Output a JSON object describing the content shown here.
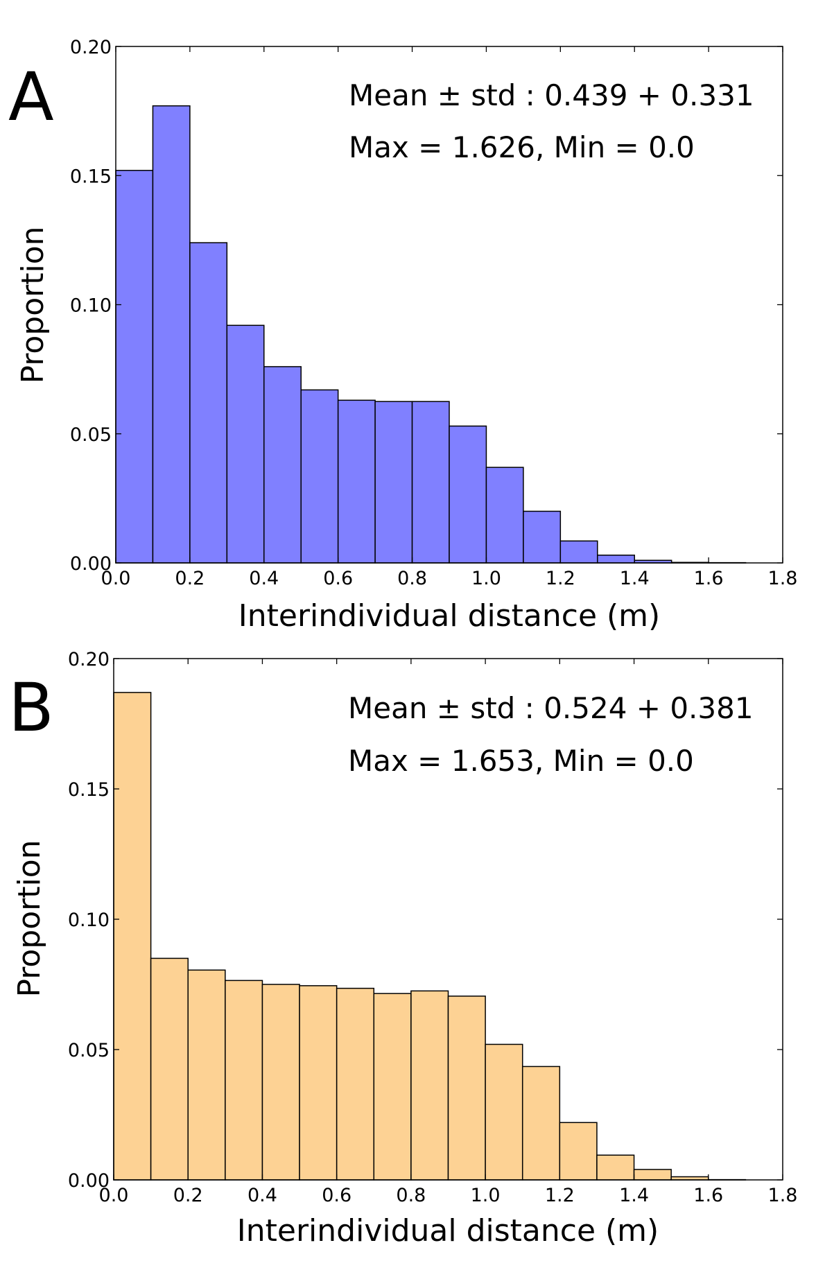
{
  "chart_data": [
    {
      "type": "bar",
      "panel_label": "A",
      "color": "#8080ff",
      "bin_edges": [
        0.0,
        0.1,
        0.2,
        0.3,
        0.4,
        0.5,
        0.6,
        0.7,
        0.8,
        0.9,
        1.0,
        1.1,
        1.2,
        1.3,
        1.4,
        1.5,
        1.6,
        1.7
      ],
      "values": [
        0.152,
        0.177,
        0.124,
        0.092,
        0.076,
        0.067,
        0.063,
        0.0625,
        0.0625,
        0.053,
        0.037,
        0.02,
        0.0085,
        0.003,
        0.001,
        0.0002,
        0.0001
      ],
      "xlabel": "Interindividual distance (m)",
      "ylabel": "Proportion",
      "xlim": [
        0.0,
        1.8
      ],
      "ylim": [
        0.0,
        0.2
      ],
      "xticks": [
        "0.0",
        "0.2",
        "0.4",
        "0.6",
        "0.8",
        "1.0",
        "1.2",
        "1.4",
        "1.6",
        "1.8"
      ],
      "yticks": [
        "0.00",
        "0.05",
        "0.10",
        "0.15",
        "0.20"
      ],
      "annotations": [
        "Mean ± std : 0.439 + 0.331",
        "Max = 1.626, Min = 0.0"
      ]
    },
    {
      "type": "bar",
      "panel_label": "B",
      "color": "#fdd294",
      "bin_edges": [
        0.0,
        0.1,
        0.2,
        0.3,
        0.4,
        0.5,
        0.6,
        0.7,
        0.8,
        0.9,
        1.0,
        1.1,
        1.2,
        1.3,
        1.4,
        1.5,
        1.6,
        1.7
      ],
      "values": [
        0.187,
        0.085,
        0.0805,
        0.0765,
        0.075,
        0.0745,
        0.0735,
        0.0715,
        0.0725,
        0.0705,
        0.052,
        0.0435,
        0.022,
        0.0095,
        0.004,
        0.0012,
        0.0001
      ],
      "xlabel": "Interindividual distance (m)",
      "ylabel": "Proportion",
      "xlim": [
        0.0,
        1.8
      ],
      "ylim": [
        0.0,
        0.2
      ],
      "xticks": [
        "0.0",
        "0.2",
        "0.4",
        "0.6",
        "0.8",
        "1.0",
        "1.2",
        "1.4",
        "1.6",
        "1.8"
      ],
      "yticks": [
        "0.00",
        "0.05",
        "0.10",
        "0.15",
        "0.20"
      ],
      "annotations": [
        "Mean ± std : 0.524 + 0.381",
        "Max = 1.653, Min = 0.0"
      ]
    }
  ]
}
